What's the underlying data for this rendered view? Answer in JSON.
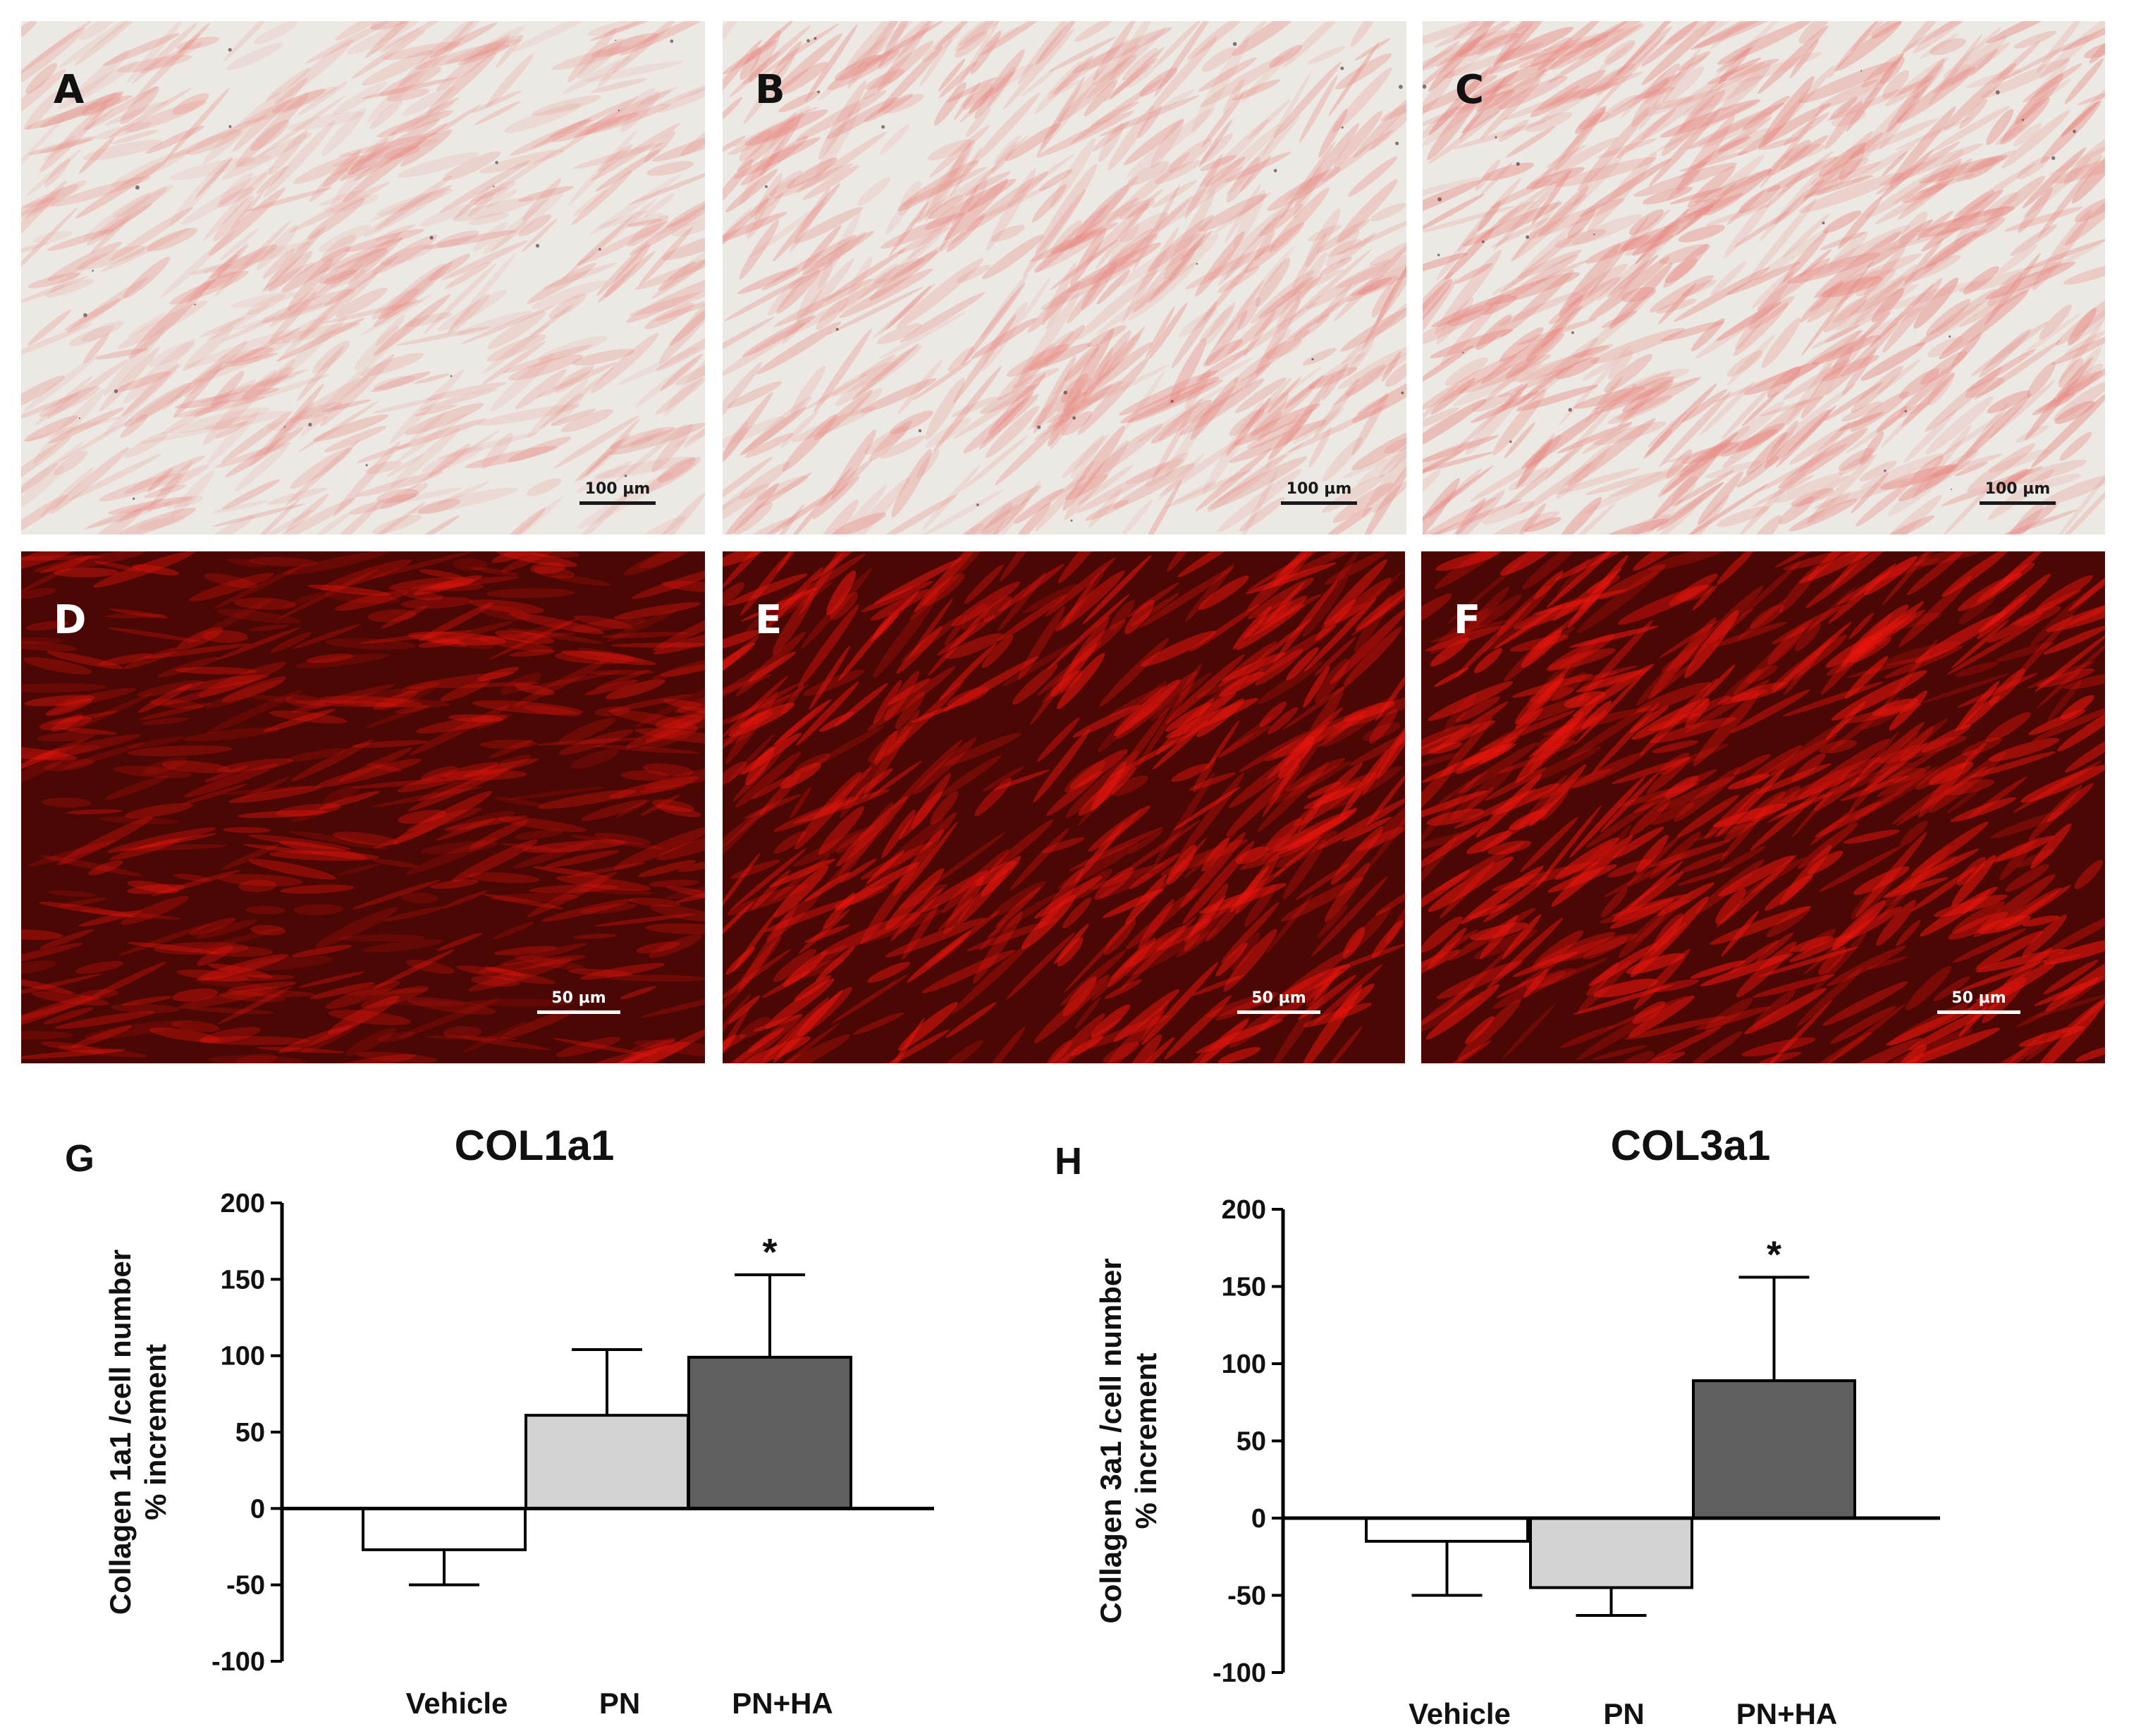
{
  "figure": {
    "panels": [
      {
        "id": "A",
        "letter": "A",
        "kind": "brightfield",
        "scale_label": "100 µm"
      },
      {
        "id": "B",
        "letter": "B",
        "kind": "brightfield",
        "scale_label": "100 µm"
      },
      {
        "id": "C",
        "letter": "C",
        "kind": "brightfield",
        "scale_label": "100 µm"
      },
      {
        "id": "D",
        "letter": "D",
        "kind": "fluorescence",
        "scale_label": "50 µm"
      },
      {
        "id": "E",
        "letter": "E",
        "kind": "fluorescence",
        "scale_label": "50 µm"
      },
      {
        "id": "F",
        "letter": "F",
        "kind": "fluorescence",
        "scale_label": "50 µm"
      }
    ],
    "colors": {
      "brightfield_bg": "#ece9e4",
      "brightfield_stain": "#e8867f",
      "fluor_bg": "#4a0704",
      "fluor_cell": "#e8150d"
    }
  },
  "chart_data": [
    {
      "panel_letter": "G",
      "type": "bar",
      "title": "COL1a1",
      "ylabel_line1": "Collagen 1a1 /cell number",
      "ylabel_line2": "% increment",
      "categories": [
        "Vehicle",
        "PN",
        "PN+HA"
      ],
      "values": [
        -27,
        61,
        99
      ],
      "errors": [
        23,
        43,
        54
      ],
      "significance": [
        "",
        "",
        "*"
      ],
      "bar_colors": [
        "#ffffff",
        "#d3d3d3",
        "#5f5f5f"
      ],
      "ylim": [
        -100,
        200
      ],
      "yticks": [
        -100,
        -50,
        0,
        50,
        100,
        150,
        200
      ],
      "ytick_labels": [
        "-100",
        "-50",
        "0",
        "50",
        "100",
        "150",
        "200"
      ],
      "grid": false
    },
    {
      "panel_letter": "H",
      "type": "bar",
      "title": "COL3a1",
      "ylabel_line1": "Collagen 3a1 /cell number",
      "ylabel_line2": "% increment",
      "categories": [
        "Vehicle",
        "PN",
        "PN+HA"
      ],
      "values": [
        -15,
        -45,
        89
      ],
      "errors": [
        35,
        18,
        67
      ],
      "significance": [
        "",
        "",
        "*"
      ],
      "bar_colors": [
        "#ffffff",
        "#d3d3d3",
        "#5f5f5f"
      ],
      "ylim": [
        -100,
        200
      ],
      "yticks": [
        -100,
        -50,
        0,
        50,
        100,
        150,
        200
      ],
      "ytick_labels": [
        "-100",
        "-50",
        "0",
        "50",
        "100",
        "150",
        "200"
      ],
      "grid": false
    }
  ]
}
